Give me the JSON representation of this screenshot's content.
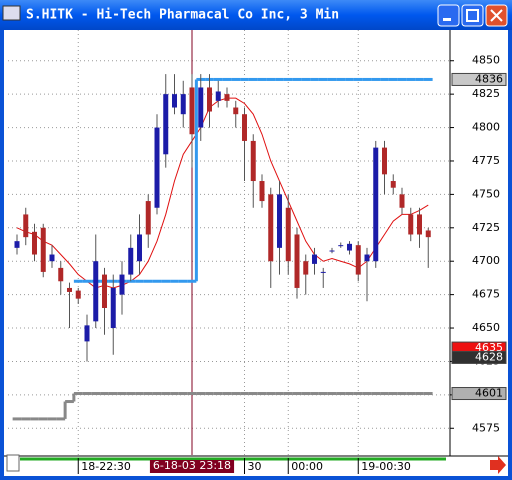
{
  "window_title": "S.HITK - Hi-Tech Pharmacal Co Inc, 3 Min",
  "chart_data": {
    "type": "candlestick",
    "categories": [
      null,
      null,
      null,
      null,
      null,
      null,
      null,
      "18-22:30",
      null,
      null,
      null,
      null,
      null,
      null,
      null,
      null,
      null,
      null,
      null,
      null,
      {
        "label": "6-18-03 23:18",
        "cursor": true
      },
      null,
      null,
      null,
      null,
      null,
      "30",
      null,
      null,
      null,
      null,
      "00:00",
      null,
      null,
      null,
      null,
      null,
      null,
      null,
      "19-00:30",
      null,
      null,
      null,
      null,
      null,
      null,
      null,
      null
    ],
    "open": [
      4710,
      4735,
      4722,
      4725,
      4700,
      4695,
      4680,
      4678,
      4640,
      4655,
      4690,
      4650,
      4675,
      4690,
      4700,
      4745,
      4740,
      4780,
      4815,
      4810,
      4830,
      4800,
      4830,
      4820,
      4825,
      4815,
      4810,
      4790,
      4760,
      4750,
      4710,
      4740,
      4720,
      4700,
      4698,
      4692,
      4708,
      4712,
      4708,
      4712,
      4700,
      4700,
      4785,
      4760,
      4750,
      4735,
      4735,
      4723
    ],
    "high": [
      4720,
      4740,
      4728,
      4728,
      4712,
      4700,
      4684,
      4680,
      4660,
      4720,
      4695,
      4690,
      4700,
      4720,
      4735,
      4750,
      4810,
      4840,
      4840,
      4835,
      4840,
      4840,
      4840,
      4835,
      4830,
      4820,
      4815,
      4795,
      4765,
      4755,
      4760,
      4750,
      4725,
      4705,
      4710,
      4695,
      4710,
      4714,
      4715,
      4715,
      4710,
      4790,
      4790,
      4765,
      4755,
      4740,
      4740,
      4725
    ],
    "low": [
      4705,
      4712,
      4700,
      4688,
      4695,
      4675,
      4650,
      4668,
      4625,
      4650,
      4645,
      4630,
      4660,
      4685,
      4690,
      4710,
      4735,
      4770,
      4810,
      4800,
      4770,
      4790,
      4800,
      4815,
      4815,
      4800,
      4760,
      4740,
      4740,
      4680,
      4690,
      4690,
      4672,
      4675,
      4690,
      4680,
      4706,
      4710,
      4705,
      4685,
      4670,
      4695,
      4750,
      4750,
      4735,
      4715,
      4710,
      4695
    ],
    "close": [
      4715,
      4718,
      4705,
      4692,
      4705,
      4685,
      4677,
      4672,
      4652,
      4700,
      4665,
      4680,
      4690,
      4710,
      4720,
      4720,
      4800,
      4825,
      4825,
      4825,
      4795,
      4830,
      4812,
      4827,
      4820,
      4810,
      4790,
      4760,
      4745,
      4700,
      4750,
      4700,
      4680,
      4690,
      4705,
      4692,
      4708,
      4712,
      4713,
      4690,
      4705,
      4785,
      4765,
      4755,
      4740,
      4720,
      4720,
      4718
    ],
    "up_color": "#1c1ca8",
    "down_color": "#b02828",
    "ylim": [
      4555,
      4873
    ],
    "yticks": [
      4575,
      4600,
      4625,
      4650,
      4675,
      4700,
      4725,
      4750,
      4775,
      4800,
      4825,
      4850
    ],
    "grid": true,
    "overlays": [
      {
        "type": "line",
        "color": "#e01010",
        "values": [
          4725,
          4722,
          4720,
          4715,
          4712,
          4705,
          4698,
          4690,
          4685,
          4680,
          4682,
          4680,
          4682,
          4685,
          4690,
          4700,
          4715,
          4735,
          4760,
          4780,
          4790,
          4800,
          4815,
          4820,
          4822,
          4822,
          4818,
          4810,
          4795,
          4775,
          4760,
          4745,
          4730,
          4715,
          4705,
          4700,
          4702,
          4700,
          4698,
          4695,
          4700,
          4710,
          4720,
          4730,
          4735,
          4735,
          4738,
          4742
        ]
      },
      {
        "type": "step",
        "color": "#3399ee",
        "values": [
          null,
          null,
          null,
          null,
          null,
          null,
          null,
          4685,
          4685,
          4685,
          4685,
          4685,
          4685,
          4685,
          4685,
          4685,
          4685,
          4685,
          4685,
          4685,
          4685,
          4836,
          4836,
          4836,
          4836,
          4836,
          4836,
          4836,
          4836,
          4836,
          4836,
          4836,
          4836,
          4836,
          4836,
          4836,
          4836,
          4836,
          4836,
          4836,
          4836,
          4836,
          4836,
          4836,
          4836,
          4836,
          4836,
          4836
        ]
      },
      {
        "type": "step",
        "color": "#888888",
        "values": [
          4582,
          4582,
          4582,
          4582,
          4582,
          4582,
          4595,
          4601,
          4601,
          4601,
          4601,
          4601,
          4601,
          4601,
          4601,
          4601,
          4601,
          4601,
          4601,
          4601,
          4601,
          4601,
          4601,
          4601,
          4601,
          4601,
          4601,
          4601,
          4601,
          4601,
          4601,
          4601,
          4601,
          4601,
          4601,
          4601,
          4601,
          4601,
          4601,
          4601,
          4601,
          4601,
          4601,
          4601,
          4601,
          4601,
          4601,
          4601
        ]
      }
    ],
    "cursor_color": "#800020",
    "price_markers": [
      {
        "value": 4836,
        "color": "#c8c8c8",
        "text_color": "#000000"
      },
      {
        "value": 4635,
        "color": "#ee1111",
        "text_color": "#ffffff"
      },
      {
        "value": 4628,
        "color": "#303030",
        "text_color": "#ffffff"
      },
      {
        "value": 4601,
        "color": "#b0b0b0",
        "text_color": "#000000"
      }
    ]
  }
}
